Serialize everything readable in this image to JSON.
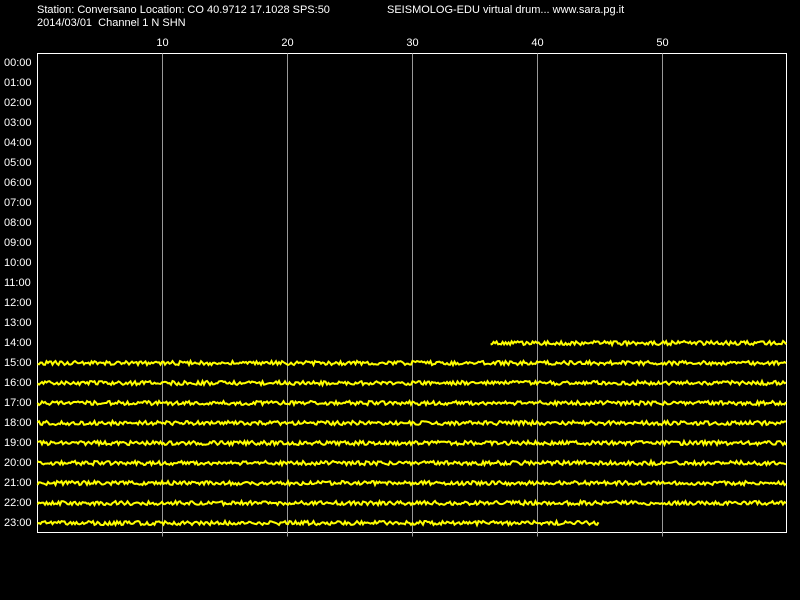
{
  "header": {
    "station": "Station: Conversano Location: CO 40.9712 17.1028 SPS:50",
    "title": "SEISMOLOG-EDU virtual drum... www.sara.pg.it",
    "date_channel": "2014/03/01  Channel 1 N SHN"
  },
  "xlim": [
    0,
    60
  ],
  "minute_ticks": [
    10,
    20,
    30,
    40,
    50
  ],
  "hours": [
    "00:00",
    "01:00",
    "02:00",
    "03:00",
    "04:00",
    "05:00",
    "06:00",
    "07:00",
    "08:00",
    "09:00",
    "10:00",
    "11:00",
    "12:00",
    "13:00",
    "14:00",
    "15:00",
    "16:00",
    "17:00",
    "18:00",
    "19:00",
    "20:00",
    "21:00",
    "22:00",
    "23:00"
  ],
  "traces": [
    null,
    null,
    null,
    null,
    null,
    null,
    null,
    null,
    null,
    null,
    null,
    null,
    null,
    null,
    [
      36.3,
      60
    ],
    [
      0,
      60
    ],
    [
      0,
      60
    ],
    [
      0,
      60
    ],
    [
      0,
      60
    ],
    [
      0,
      60
    ],
    [
      0,
      60
    ],
    [
      0,
      60
    ],
    [
      0,
      60
    ],
    [
      0,
      45
    ]
  ]
}
